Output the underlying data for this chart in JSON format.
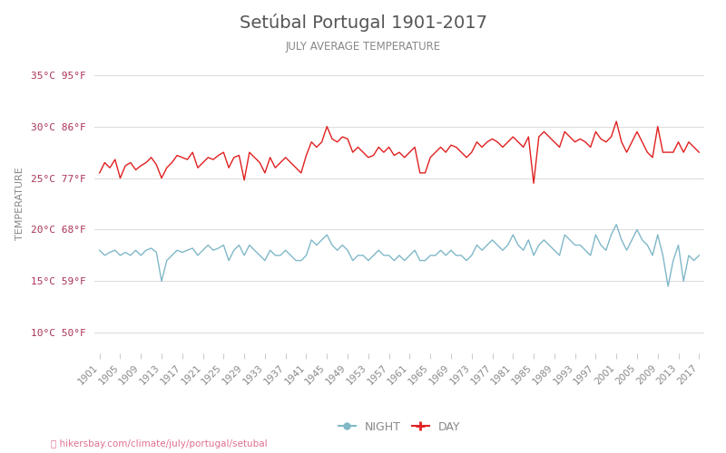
{
  "title": "Setúbal Portugal 1901-2017",
  "subtitle": "JULY AVERAGE TEMPERATURE",
  "ylabel": "TEMPERATURE",
  "xlabel_url": "hikersbay.com/climate/july/portugal/setubal",
  "title_color": "#555555",
  "subtitle_color": "#888888",
  "ylabel_color": "#888888",
  "background_color": "#ffffff",
  "grid_color": "#dddddd",
  "line_day_color": "#e02020",
  "line_night_color": "#80b8c8",
  "years": [
    1901,
    1902,
    1903,
    1904,
    1905,
    1906,
    1907,
    1908,
    1909,
    1910,
    1911,
    1912,
    1913,
    1914,
    1915,
    1916,
    1917,
    1918,
    1919,
    1920,
    1921,
    1922,
    1923,
    1924,
    1925,
    1926,
    1927,
    1928,
    1929,
    1930,
    1931,
    1932,
    1933,
    1934,
    1935,
    1936,
    1937,
    1938,
    1939,
    1940,
    1941,
    1942,
    1943,
    1944,
    1945,
    1946,
    1947,
    1948,
    1949,
    1950,
    1951,
    1952,
    1953,
    1954,
    1955,
    1956,
    1957,
    1958,
    1959,
    1960,
    1961,
    1962,
    1963,
    1964,
    1965,
    1966,
    1967,
    1968,
    1969,
    1970,
    1971,
    1972,
    1973,
    1974,
    1975,
    1976,
    1977,
    1978,
    1979,
    1980,
    1981,
    1982,
    1983,
    1984,
    1985,
    1986,
    1987,
    1988,
    1989,
    1990,
    1991,
    1992,
    1993,
    1994,
    1995,
    1996,
    1997,
    1998,
    1999,
    2000,
    2001,
    2002,
    2003,
    2004,
    2005,
    2006,
    2007,
    2008,
    2009,
    2010,
    2011,
    2012,
    2013,
    2014,
    2015,
    2016,
    2017
  ],
  "day_temps": [
    25.5,
    26.5,
    26.0,
    26.8,
    25.0,
    26.2,
    26.5,
    25.8,
    26.2,
    26.5,
    27.0,
    26.3,
    25.0,
    26.0,
    26.5,
    27.2,
    27.0,
    26.8,
    27.5,
    26.0,
    26.5,
    27.0,
    26.8,
    27.2,
    27.5,
    26.0,
    27.0,
    27.2,
    24.8,
    27.5,
    27.0,
    26.5,
    25.5,
    27.0,
    26.0,
    26.5,
    27.0,
    26.5,
    26.0,
    25.5,
    27.2,
    28.5,
    28.0,
    28.5,
    30.0,
    28.8,
    28.5,
    29.0,
    28.8,
    27.5,
    28.0,
    27.5,
    27.0,
    27.2,
    28.0,
    27.5,
    28.0,
    27.2,
    27.5,
    27.0,
    27.5,
    28.0,
    25.5,
    25.5,
    27.0,
    27.5,
    28.0,
    27.5,
    28.2,
    28.0,
    27.5,
    27.0,
    27.5,
    28.5,
    28.0,
    28.5,
    28.8,
    28.5,
    28.0,
    28.5,
    29.0,
    28.5,
    28.0,
    29.0,
    24.5,
    29.0,
    29.5,
    29.0,
    28.5,
    28.0,
    29.5,
    29.0,
    28.5,
    28.8,
    28.5,
    28.0,
    29.5,
    28.8,
    28.5,
    29.0,
    30.5,
    28.5,
    27.5,
    28.5,
    29.5,
    28.5,
    27.5,
    27.0,
    30.0,
    27.5,
    27.5,
    27.5,
    28.5,
    27.5,
    28.5,
    28.0,
    27.5
  ],
  "night_temps": [
    18.0,
    17.5,
    17.8,
    18.0,
    17.5,
    17.8,
    17.5,
    18.0,
    17.5,
    18.0,
    18.2,
    17.8,
    15.0,
    17.0,
    17.5,
    18.0,
    17.8,
    18.0,
    18.2,
    17.5,
    18.0,
    18.5,
    18.0,
    18.2,
    18.5,
    17.0,
    18.0,
    18.5,
    17.5,
    18.5,
    18.0,
    17.5,
    17.0,
    18.0,
    17.5,
    17.5,
    18.0,
    17.5,
    17.0,
    17.0,
    17.5,
    19.0,
    18.5,
    19.0,
    19.5,
    18.5,
    18.0,
    18.5,
    18.0,
    17.0,
    17.5,
    17.5,
    17.0,
    17.5,
    18.0,
    17.5,
    17.5,
    17.0,
    17.5,
    17.0,
    17.5,
    18.0,
    17.0,
    17.0,
    17.5,
    17.5,
    18.0,
    17.5,
    18.0,
    17.5,
    17.5,
    17.0,
    17.5,
    18.5,
    18.0,
    18.5,
    19.0,
    18.5,
    18.0,
    18.5,
    19.5,
    18.5,
    18.0,
    19.0,
    17.5,
    18.5,
    19.0,
    18.5,
    18.0,
    17.5,
    19.5,
    19.0,
    18.5,
    18.5,
    18.0,
    17.5,
    19.5,
    18.5,
    18.0,
    19.5,
    20.5,
    19.0,
    18.0,
    19.0,
    20.0,
    19.0,
    18.5,
    17.5,
    19.5,
    17.5,
    14.5,
    17.0,
    18.5,
    15.0,
    17.5,
    17.0,
    17.5
  ],
  "ylim_bottom": 8,
  "ylim_top": 37,
  "yticks_celsius": [
    10,
    15,
    20,
    25,
    30,
    35
  ],
  "yticks_fahrenheit": [
    50,
    59,
    68,
    77,
    86,
    95
  ],
  "xtick_years": [
    1901,
    1905,
    1909,
    1913,
    1917,
    1921,
    1925,
    1929,
    1933,
    1937,
    1941,
    1945,
    1949,
    1953,
    1957,
    1961,
    1965,
    1969,
    1973,
    1977,
    1981,
    1985,
    1989,
    1993,
    1997,
    2001,
    2005,
    2009,
    2013,
    2017
  ],
  "legend_night_label": "NIGHT",
  "legend_day_label": "DAY",
  "url_text": "hikersbay.com/climate/july/portugal/setubal"
}
